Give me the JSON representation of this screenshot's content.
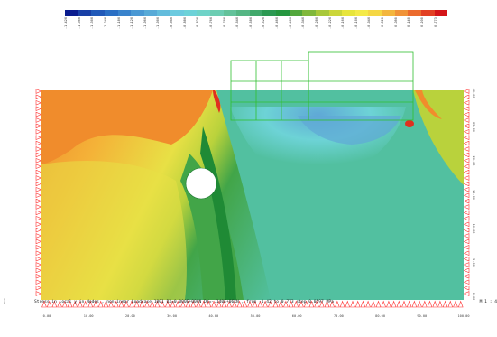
{
  "legend": {
    "colors": [
      "#0a1c8e",
      "#1840a6",
      "#2159b8",
      "#2a6fc4",
      "#3983cc",
      "#4a98d3",
      "#58aad7",
      "#63bcdc",
      "#6ccadf",
      "#6dd2d8",
      "#6fd3c8",
      "#6ccdb2",
      "#63c29a",
      "#55b684",
      "#41a86b",
      "#2c9a53",
      "#25963f",
      "#52a73c",
      "#80b83b",
      "#a8c83a",
      "#cbd63a",
      "#e7e53c",
      "#f4ea49",
      "#f5d744",
      "#f3b63e",
      "#f09338",
      "#eb6b2d",
      "#e24023",
      "#d41518"
    ],
    "labels": [
      "-1.420",
      "-1.360",
      "-1.300",
      "-1.240",
      "-1.180",
      "-1.120",
      "-1.060",
      "-1.000",
      "-0.940",
      "-0.880",
      "-0.820",
      "-0.760",
      "-0.700",
      "-0.640",
      "-0.580",
      "-0.520",
      "-0.460",
      "-0.400",
      "-0.340",
      "-0.280",
      "-0.220",
      "-0.160",
      "-0.100",
      "-0.040",
      "0.020",
      "0.080",
      "0.140",
      "0.200",
      "0.773"
    ]
  },
  "model": {
    "bottom_ticks": [
      "0.00",
      "10.00",
      "20.00",
      "30.00",
      "40.00",
      "50.00",
      "60.00",
      "70.00",
      "80.00",
      "90.00",
      "100.00"
    ],
    "right_ticks": [
      "30.00",
      "25.00",
      "20.00",
      "15.00",
      "10.00",
      "5.00",
      "0.00"
    ],
    "colors": {
      "orange": "#f08c2c",
      "yellow_orange": "#f4b238",
      "yellow": "#e8e045",
      "yellow_green": "#b9d23c",
      "green": "#42a548",
      "dark_green": "#1f8a35",
      "teal": "#52c0a0",
      "cyan": "#6dd3d6",
      "blue": "#5fa8d6",
      "red": "#e0301f",
      "structure": "#2fbf2f",
      "support": "#ff3030"
    }
  },
  "status": {
    "message": "Stress in local y in Nodes , nonlinear Loadcase 1001 DX=0.000E+00kN  DY=-.140E+06kN  , from -1.42 to 0.773 step 0.0597 MPa",
    "zoom": "M 1 : 4"
  },
  "corner_axis": {
    "y_label": "Y",
    "x_label": "X"
  }
}
